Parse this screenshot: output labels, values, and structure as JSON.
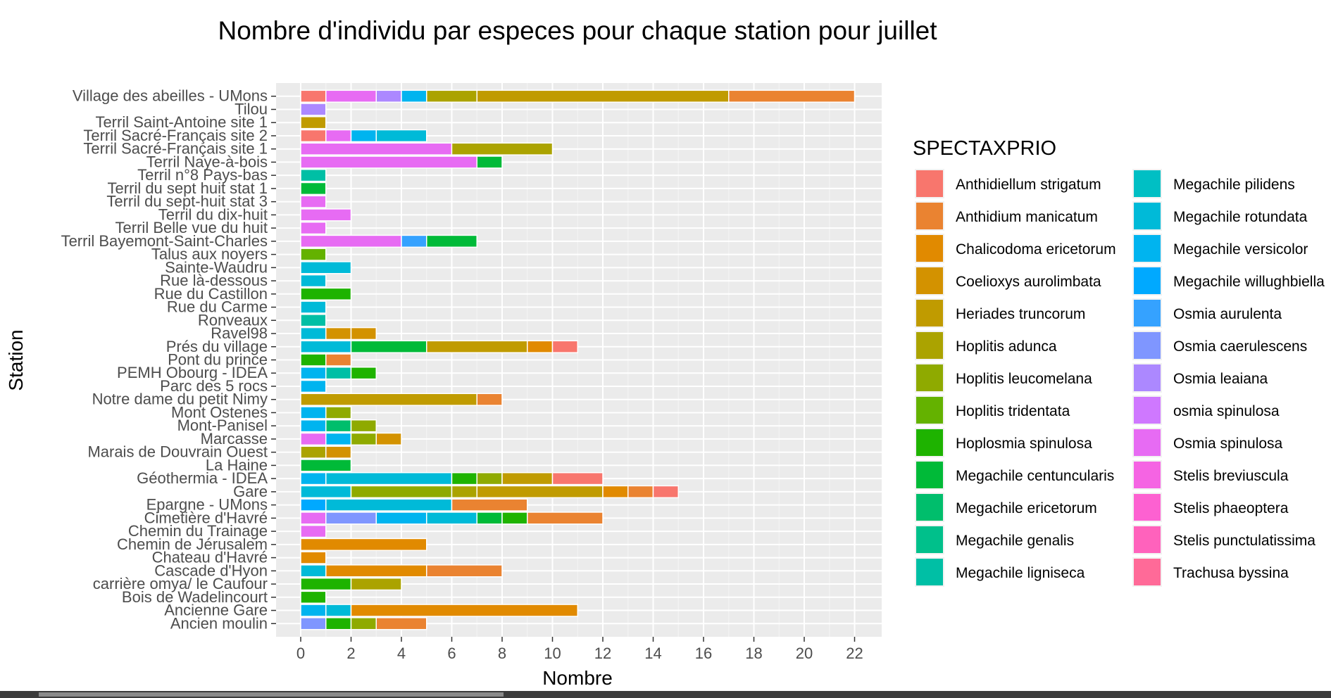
{
  "chart_data": {
    "type": "bar",
    "orientation": "horizontal",
    "stacked": true,
    "title": "Nombre d'individu par especes pour chaque station pour juillet",
    "xlabel": "Nombre",
    "ylabel": "Station",
    "xlim": [
      0,
      23
    ],
    "xticks": [
      0,
      2,
      4,
      6,
      8,
      10,
      12,
      14,
      16,
      18,
      20,
      22
    ],
    "grid": true,
    "legend_position": "right",
    "legend_title": "SPECTAXPRIO",
    "species": [
      {
        "name": "Anthidiellum strigatum",
        "color": "#F8766D"
      },
      {
        "name": "Anthidium manicatum",
        "color": "#EA8331"
      },
      {
        "name": "Chalicodoma ericetorum",
        "color": "#E18A00"
      },
      {
        "name": "Coelioxys aurolimbata",
        "color": "#D39200"
      },
      {
        "name": "Heriades truncorum",
        "color": "#C09B00"
      },
      {
        "name": "Hoplitis adunca",
        "color": "#ABA300"
      },
      {
        "name": "Hoplitis leucomelana",
        "color": "#8FAA00"
      },
      {
        "name": "Hoplitis tridentata",
        "color": "#64B200"
      },
      {
        "name": "Hoplosmia spinulosa",
        "color": "#1EB300"
      },
      {
        "name": "Megachile centuncularis",
        "color": "#00BA38"
      },
      {
        "name": "Megachile ericetorum",
        "color": "#00BE6C"
      },
      {
        "name": "Megachile genalis",
        "color": "#00C08B"
      },
      {
        "name": "Megachile ligniseca",
        "color": "#00BFA5"
      },
      {
        "name": "Megachile pilidens",
        "color": "#00BFC4"
      },
      {
        "name": "Megachile rotundata",
        "color": "#00BAD8"
      },
      {
        "name": "Megachile versicolor",
        "color": "#00B4EF"
      },
      {
        "name": "Megachile willughbiella",
        "color": "#00A9FF"
      },
      {
        "name": "Osmia aurulenta",
        "color": "#35A2FF"
      },
      {
        "name": "Osmia caerulescens",
        "color": "#7F96FF"
      },
      {
        "name": "Osmia leaiana",
        "color": "#AC88FF"
      },
      {
        "name": "osmia spinulosa",
        "color": "#CF78FF"
      },
      {
        "name": "Osmia spinulosa",
        "color": "#E76BF3"
      },
      {
        "name": "Stelis breviuscula",
        "color": "#F564E3"
      },
      {
        "name": "Stelis phaeoptera",
        "color": "#FD61D1"
      },
      {
        "name": "Stelis punctulatissima",
        "color": "#FF62BC"
      },
      {
        "name": "Trachusa byssina",
        "color": "#FF6A98"
      }
    ],
    "stations": [
      {
        "name": "Village des abeilles - UMons",
        "segments": [
          [
            "#F8766D",
            1
          ],
          [
            "#E76BF3",
            2
          ],
          [
            "#AC88FF",
            1
          ],
          [
            "#00B4EF",
            1
          ],
          [
            "#ABA300",
            2
          ],
          [
            "#C09B00",
            10
          ],
          [
            "#EA8331",
            5
          ]
        ]
      },
      {
        "name": "Tilou",
        "segments": [
          [
            "#AC88FF",
            1
          ]
        ]
      },
      {
        "name": "Terril Saint-Antoine site 1",
        "segments": [
          [
            "#C09B00",
            1
          ]
        ]
      },
      {
        "name": "Terril Sacré-Français site 2",
        "segments": [
          [
            "#F8766D",
            1
          ],
          [
            "#E76BF3",
            1
          ],
          [
            "#00B4EF",
            1
          ],
          [
            "#00BAD8",
            2
          ]
        ]
      },
      {
        "name": "Terril Sacré-Français site 1",
        "segments": [
          [
            "#E76BF3",
            6
          ],
          [
            "#ABA300",
            4
          ]
        ]
      },
      {
        "name": "Terril Naye-à-bois",
        "segments": [
          [
            "#E76BF3",
            7
          ],
          [
            "#00BA38",
            1
          ]
        ]
      },
      {
        "name": "Terril n°8 Pays-bas",
        "segments": [
          [
            "#00BFA5",
            1
          ]
        ]
      },
      {
        "name": "Terril du sept huit stat 1",
        "segments": [
          [
            "#00BA38",
            1
          ]
        ]
      },
      {
        "name": "Terril du sept-huit stat 3",
        "segments": [
          [
            "#E76BF3",
            1
          ]
        ]
      },
      {
        "name": "Terril du dix-huit",
        "segments": [
          [
            "#E76BF3",
            2
          ]
        ]
      },
      {
        "name": "Terril Belle vue du huit",
        "segments": [
          [
            "#E76BF3",
            1
          ]
        ]
      },
      {
        "name": "Terril Bayemont-Saint-Charles",
        "segments": [
          [
            "#E76BF3",
            4
          ],
          [
            "#35A2FF",
            1
          ],
          [
            "#00BA38",
            2
          ]
        ]
      },
      {
        "name": "Talus aux noyers",
        "segments": [
          [
            "#64B200",
            1
          ]
        ]
      },
      {
        "name": "Sainte-Waudru",
        "segments": [
          [
            "#00BAD8",
            2
          ]
        ]
      },
      {
        "name": "Rue là-dessous",
        "segments": [
          [
            "#00BAD8",
            1
          ]
        ]
      },
      {
        "name": "Rue du Castillon",
        "segments": [
          [
            "#1EB300",
            2
          ]
        ]
      },
      {
        "name": "Rue du Carme",
        "segments": [
          [
            "#00BAD8",
            1
          ]
        ]
      },
      {
        "name": "Ronveaux",
        "segments": [
          [
            "#00BFA5",
            1
          ]
        ]
      },
      {
        "name": "Ravel98",
        "segments": [
          [
            "#00BAD8",
            1
          ],
          [
            "#D39200",
            1
          ],
          [
            "#D39200",
            1
          ]
        ]
      },
      {
        "name": "Prés du village",
        "segments": [
          [
            "#00BAD8",
            2
          ],
          [
            "#00BA38",
            3
          ],
          [
            "#C09B00",
            4
          ],
          [
            "#E18A00",
            1
          ],
          [
            "#F8766D",
            1
          ]
        ]
      },
      {
        "name": "Pont du prince",
        "segments": [
          [
            "#1EB300",
            1
          ],
          [
            "#EA8331",
            1
          ]
        ]
      },
      {
        "name": "PEMH Obourg - IDEA",
        "segments": [
          [
            "#00B4EF",
            1
          ],
          [
            "#00BFA5",
            1
          ],
          [
            "#1EB300",
            1
          ]
        ]
      },
      {
        "name": "Parc des 5 rocs",
        "segments": [
          [
            "#00B4EF",
            1
          ]
        ]
      },
      {
        "name": "Notre dame du petit Nimy",
        "segments": [
          [
            "#C09B00",
            7
          ],
          [
            "#EA8331",
            1
          ]
        ]
      },
      {
        "name": "Mont Ostenes",
        "segments": [
          [
            "#00B4EF",
            1
          ],
          [
            "#8FAA00",
            1
          ]
        ]
      },
      {
        "name": "Mont-Panisel",
        "segments": [
          [
            "#00B4EF",
            1
          ],
          [
            "#00BE6C",
            1
          ],
          [
            "#8FAA00",
            1
          ]
        ]
      },
      {
        "name": "Marcasse",
        "segments": [
          [
            "#E76BF3",
            1
          ],
          [
            "#00B4EF",
            1
          ],
          [
            "#8FAA00",
            1
          ],
          [
            "#D39200",
            1
          ]
        ]
      },
      {
        "name": "Marais de Douvrain Ouest",
        "segments": [
          [
            "#ABA300",
            1
          ],
          [
            "#D39200",
            1
          ]
        ]
      },
      {
        "name": "La Haine",
        "segments": [
          [
            "#00BA38",
            2
          ]
        ]
      },
      {
        "name": "Géothermia - IDEA",
        "segments": [
          [
            "#00B4EF",
            1
          ],
          [
            "#00BAD8",
            5
          ],
          [
            "#1EB300",
            1
          ],
          [
            "#8FAA00",
            1
          ],
          [
            "#C09B00",
            2
          ],
          [
            "#F8766D",
            2
          ]
        ]
      },
      {
        "name": "Gare",
        "segments": [
          [
            "#00BAD8",
            2
          ],
          [
            "#8FAA00",
            4
          ],
          [
            "#ABA300",
            1
          ],
          [
            "#C09B00",
            5
          ],
          [
            "#E18A00",
            1
          ],
          [
            "#EA8331",
            1
          ],
          [
            "#F8766D",
            1
          ]
        ]
      },
      {
        "name": "Epargne - UMons",
        "segments": [
          [
            "#00A9FF",
            1
          ],
          [
            "#00BAD8",
            5
          ],
          [
            "#EA8331",
            3
          ]
        ]
      },
      {
        "name": "Cimetière d'Havré",
        "segments": [
          [
            "#E76BF3",
            1
          ],
          [
            "#7F96FF",
            2
          ],
          [
            "#00B4EF",
            2
          ],
          [
            "#00BAD8",
            2
          ],
          [
            "#00BA38",
            1
          ],
          [
            "#1EB300",
            1
          ],
          [
            "#EA8331",
            3
          ]
        ]
      },
      {
        "name": "Chemin du Trainage",
        "segments": [
          [
            "#E76BF3",
            1
          ]
        ]
      },
      {
        "name": "Chemin de Jérusalem",
        "segments": [
          [
            "#E18A00",
            5
          ]
        ]
      },
      {
        "name": "Chateau d'Havré",
        "segments": [
          [
            "#E18A00",
            1
          ]
        ]
      },
      {
        "name": "Cascade d'Hyon",
        "segments": [
          [
            "#00BAD8",
            1
          ],
          [
            "#E18A00",
            4
          ],
          [
            "#EA8331",
            3
          ]
        ]
      },
      {
        "name": "carrière omya/ le Caufour",
        "segments": [
          [
            "#1EB300",
            2
          ],
          [
            "#ABA300",
            2
          ]
        ]
      },
      {
        "name": "Bois de Wadelincourt",
        "segments": [
          [
            "#1EB300",
            1
          ]
        ]
      },
      {
        "name": "Ancienne Gare",
        "segments": [
          [
            "#00B4EF",
            1
          ],
          [
            "#00BAD8",
            1
          ],
          [
            "#E18A00",
            9
          ]
        ]
      },
      {
        "name": "Ancien moulin",
        "segments": [
          [
            "#7F96FF",
            1
          ],
          [
            "#1EB300",
            1
          ],
          [
            "#8FAA00",
            1
          ],
          [
            "#EA8331",
            2
          ]
        ]
      }
    ]
  }
}
